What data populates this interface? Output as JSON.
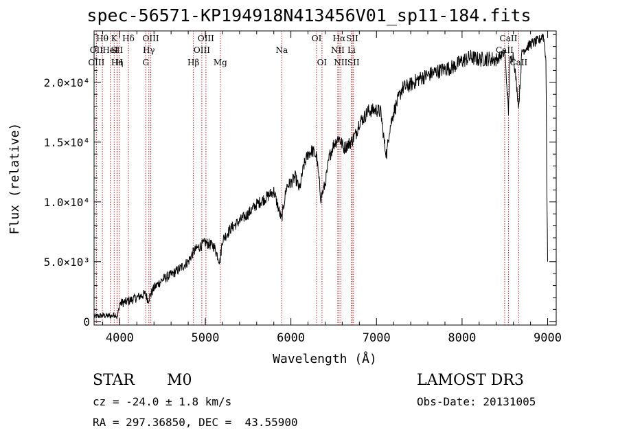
{
  "title": "spec-56571-KP194918N413456V01_sp11-184.fits",
  "info": {
    "star_class": "STAR",
    "subclass": "M0",
    "survey": "LAMOST DR3",
    "cz": "cz = -24.0 ± 1.8 km/s",
    "obs_date": "Obs-Date: 20131005",
    "radec": "RA = 297.36850, DEC =  43.55900"
  },
  "chart_data": {
    "type": "line",
    "title": "spec-56571-KP194918N413456V01_sp11-184.fits",
    "xlabel": "Wavelength (Å)",
    "ylabel": "Flux (relative)",
    "xlim": [
      3700,
      9100
    ],
    "ylim": [
      -300,
      24300
    ],
    "x_ticks": [
      4000,
      5000,
      6000,
      7000,
      8000,
      9000
    ],
    "y_ticks": [
      {
        "value": 0,
        "label": "0"
      },
      {
        "value": 5000,
        "label": "5.0×10³"
      },
      {
        "value": 10000,
        "label": "1.0×10⁴"
      },
      {
        "value": 15000,
        "label": "1.5×10⁴"
      },
      {
        "value": 20000,
        "label": "2.0×10⁴"
      }
    ],
    "line_color": "#000000",
    "marker_color": "#b22222",
    "spectrum_anchors": [
      [
        3700,
        400
      ],
      [
        3800,
        500
      ],
      [
        3900,
        450
      ],
      [
        3950,
        600
      ],
      [
        3970,
        300
      ],
      [
        4000,
        1500
      ],
      [
        4100,
        1700
      ],
      [
        4200,
        2000
      ],
      [
        4300,
        2300
      ],
      [
        4330,
        1800
      ],
      [
        4400,
        2800
      ],
      [
        4500,
        3500
      ],
      [
        4600,
        3900
      ],
      [
        4700,
        4400
      ],
      [
        4800,
        5000
      ],
      [
        4860,
        5800
      ],
      [
        4900,
        6100
      ],
      [
        5000,
        6600
      ],
      [
        5100,
        6300
      ],
      [
        5170,
        5000
      ],
      [
        5200,
        6800
      ],
      [
        5300,
        7800
      ],
      [
        5400,
        8400
      ],
      [
        5500,
        9000
      ],
      [
        5600,
        9800
      ],
      [
        5700,
        10300
      ],
      [
        5800,
        10900
      ],
      [
        5890,
        8500
      ],
      [
        5950,
        11300
      ],
      [
        6000,
        11600
      ],
      [
        6050,
        12100
      ],
      [
        6100,
        11000
      ],
      [
        6150,
        13000
      ],
      [
        6200,
        14000
      ],
      [
        6250,
        14300
      ],
      [
        6300,
        13800
      ],
      [
        6350,
        10300
      ],
      [
        6400,
        11500
      ],
      [
        6450,
        13800
      ],
      [
        6500,
        14800
      ],
      [
        6560,
        15400
      ],
      [
        6620,
        14500
      ],
      [
        6700,
        15000
      ],
      [
        6760,
        15700
      ],
      [
        6800,
        16700
      ],
      [
        6850,
        17000
      ],
      [
        6900,
        17600
      ],
      [
        7000,
        17700
      ],
      [
        7050,
        17500
      ],
      [
        7100,
        14500
      ],
      [
        7120,
        14000
      ],
      [
        7150,
        16000
      ],
      [
        7200,
        17500
      ],
      [
        7300,
        19500
      ],
      [
        7400,
        19800
      ],
      [
        7500,
        20300
      ],
      [
        7600,
        20600
      ],
      [
        7700,
        20900
      ],
      [
        7800,
        21100
      ],
      [
        7900,
        21300
      ],
      [
        8000,
        21800
      ],
      [
        8100,
        22100
      ],
      [
        8200,
        21900
      ],
      [
        8300,
        22000
      ],
      [
        8400,
        21900
      ],
      [
        8500,
        22500
      ],
      [
        8542,
        17500
      ],
      [
        8560,
        21800
      ],
      [
        8600,
        22300
      ],
      [
        8662,
        18000
      ],
      [
        8700,
        22600
      ],
      [
        8800,
        23200
      ],
      [
        8900,
        23500
      ],
      [
        8950,
        24000
      ],
      [
        8980,
        22000
      ],
      [
        8990,
        12000
      ],
      [
        9000,
        5000
      ]
    ],
    "lines": [
      {
        "wave": 3797,
        "label": "Hθ",
        "row": 0
      },
      {
        "wave": 3727,
        "label": "OII",
        "row": 1
      },
      {
        "wave": 3727,
        "label": "OIII",
        "row": 2
      },
      {
        "wave": 3889,
        "label": "HeI",
        "row": 1
      },
      {
        "wave": 3935,
        "label": "K",
        "row": 0
      },
      {
        "wave": 3970,
        "label": "Hη",
        "row": 2
      },
      {
        "wave": 3968,
        "label": "SII",
        "row": 1
      },
      {
        "wave": 3995,
        "label": "H",
        "row": 2
      },
      {
        "wave": 4101,
        "label": "Hδ",
        "row": 0
      },
      {
        "wave": 4340,
        "label": "Hγ",
        "row": 1
      },
      {
        "wave": 4363,
        "label": "OIII",
        "row": 0
      },
      {
        "wave": 4304,
        "label": "G",
        "row": 2
      },
      {
        "wave": 4861,
        "label": "Hβ",
        "row": 2
      },
      {
        "wave": 4959,
        "label": "OIII",
        "row": 1
      },
      {
        "wave": 5007,
        "label": "OIII",
        "row": 0
      },
      {
        "wave": 5175,
        "label": "Mg",
        "row": 2
      },
      {
        "wave": 5893,
        "label": "Na",
        "row": 1
      },
      {
        "wave": 6300,
        "label": "OI",
        "row": 0
      },
      {
        "wave": 6363,
        "label": "OI",
        "row": 2
      },
      {
        "wave": 6548,
        "label": "NII",
        "row": 1
      },
      {
        "wave": 6563,
        "label": "Hα",
        "row": 0
      },
      {
        "wave": 6583,
        "label": "NII",
        "row": 2
      },
      {
        "wave": 6708,
        "label": "Li",
        "row": 1
      },
      {
        "wave": 6716,
        "label": "SII",
        "row": 0
      },
      {
        "wave": 6731,
        "label": "SII",
        "row": 2
      },
      {
        "wave": 8498,
        "label": "CaII",
        "row": 1
      },
      {
        "wave": 8542,
        "label": "CaII",
        "row": 0
      },
      {
        "wave": 8662,
        "label": "CaII",
        "row": 2
      }
    ]
  }
}
